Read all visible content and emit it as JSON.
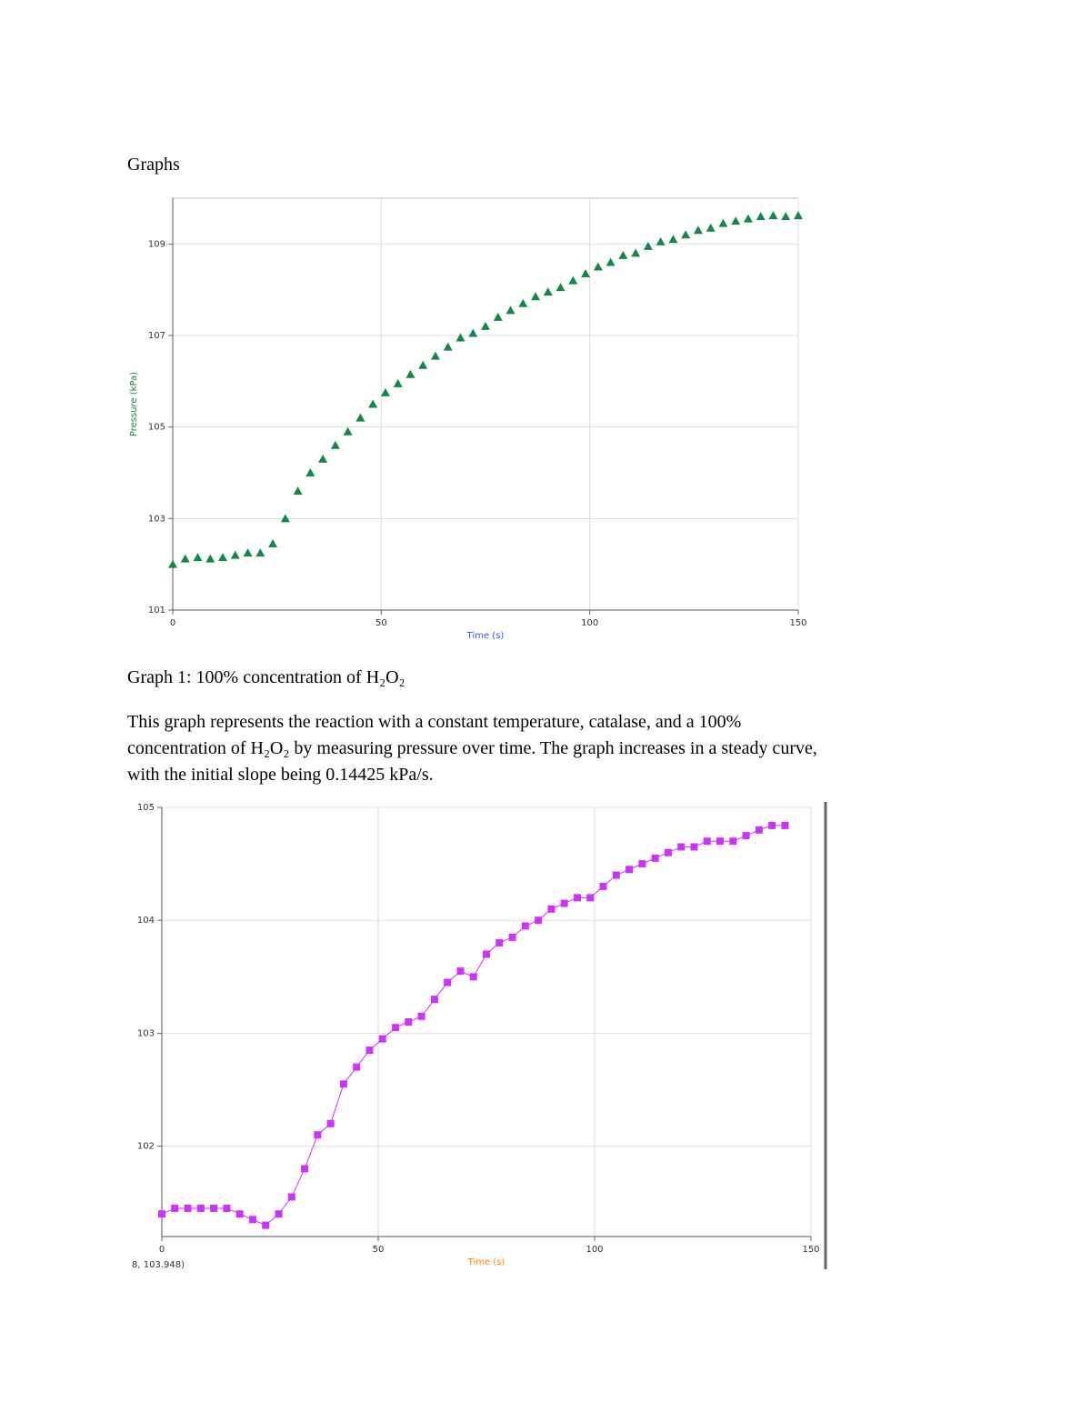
{
  "heading": "Graphs",
  "caption": "Graph 1: 100% concentration of H₂O₂",
  "paragraph": [
    "This graph represents the reaction with a constant temperature, catalase, and a 100%",
    "concentration of H₂O₂ by measuring pressure over time. The graph increases in a steady curve,",
    "with the initial slope being 0.14425 kPa/s."
  ],
  "readout": "8, 103.948)",
  "chart_data": [
    {
      "type": "scatter",
      "marker": "triangle",
      "color": "#14884a",
      "grid": true,
      "xlabel": "Time (s)",
      "ylabel": "Pressure (kPa)",
      "xlim": [
        0,
        150
      ],
      "ylim": [
        101,
        110
      ],
      "xticks": [
        0,
        50,
        100,
        150
      ],
      "yticks": [
        101,
        103,
        105,
        107,
        109
      ],
      "x": [
        0,
        3,
        6,
        9,
        12,
        15,
        18,
        21,
        24,
        27,
        30,
        33,
        36,
        39,
        42,
        45,
        48,
        51,
        54,
        57,
        60,
        63,
        66,
        69,
        72,
        75,
        78,
        81,
        84,
        87,
        90,
        93,
        96,
        99,
        102,
        105,
        108,
        111,
        114,
        117,
        120,
        123,
        126,
        129,
        132,
        135,
        138,
        141,
        144,
        147,
        150
      ],
      "values": [
        102.0,
        102.12,
        102.15,
        102.12,
        102.15,
        102.2,
        102.25,
        102.25,
        102.45,
        103.0,
        103.6,
        104.0,
        104.3,
        104.6,
        104.9,
        105.2,
        105.5,
        105.75,
        105.95,
        106.15,
        106.35,
        106.55,
        106.75,
        106.95,
        107.05,
        107.2,
        107.4,
        107.55,
        107.7,
        107.85,
        107.95,
        108.05,
        108.2,
        108.35,
        108.5,
        108.6,
        108.75,
        108.8,
        108.95,
        109.05,
        109.1,
        109.2,
        109.3,
        109.35,
        109.45,
        109.5,
        109.55,
        109.6,
        109.62,
        109.6,
        109.62
      ]
    },
    {
      "type": "scatter",
      "marker": "square",
      "color": "#cc33ff",
      "grid": true,
      "xlabel": "Time (s)",
      "xlim": [
        0,
        150
      ],
      "ylim": [
        101.2,
        105
      ],
      "xticks": [
        0,
        50,
        100,
        150
      ],
      "yticks": [
        102,
        103,
        104,
        105
      ],
      "x": [
        0,
        3,
        6,
        9,
        12,
        15,
        18,
        21,
        24,
        27,
        30,
        33,
        36,
        39,
        42,
        45,
        48,
        51,
        54,
        57,
        60,
        63,
        66,
        69,
        72,
        75,
        78,
        81,
        84,
        87,
        90,
        93,
        96,
        99,
        102,
        105,
        108,
        111,
        114,
        117,
        120,
        123,
        126,
        129,
        132,
        135,
        138,
        141,
        144
      ],
      "values": [
        101.4,
        101.45,
        101.45,
        101.45,
        101.45,
        101.45,
        101.4,
        101.35,
        101.3,
        101.4,
        101.55,
        101.8,
        102.1,
        102.2,
        102.55,
        102.7,
        102.85,
        102.95,
        103.05,
        103.1,
        103.15,
        103.3,
        103.45,
        103.55,
        103.5,
        103.7,
        103.8,
        103.85,
        103.95,
        104.0,
        104.1,
        104.15,
        104.2,
        104.2,
        104.3,
        104.4,
        104.45,
        104.5,
        104.55,
        104.6,
        104.65,
        104.65,
        104.7,
        104.7,
        104.7,
        104.75,
        104.8,
        104.84,
        104.84
      ]
    }
  ]
}
